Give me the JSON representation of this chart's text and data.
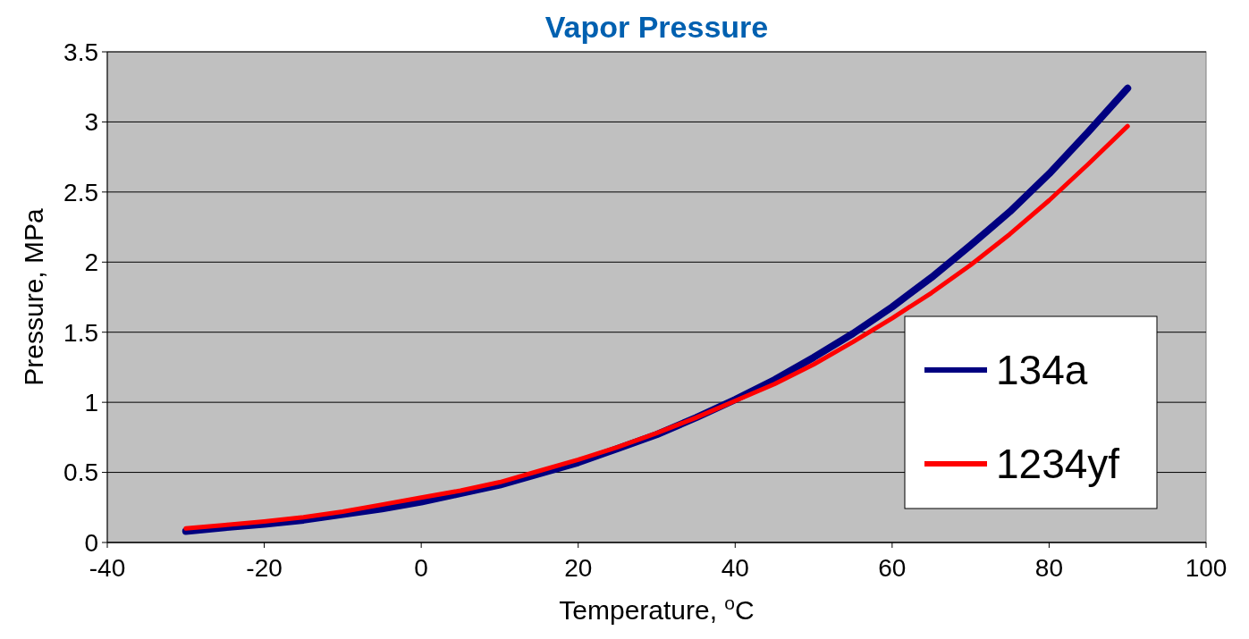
{
  "chart_data": {
    "type": "line",
    "title": "Vapor Pressure",
    "xlabel": "Temperature, $^{o}$C",
    "ylabel": "Pressure, MPa",
    "x": [
      -30,
      -25,
      -20,
      -15,
      -10,
      -5,
      0,
      5,
      10,
      15,
      20,
      25,
      30,
      35,
      40,
      45,
      50,
      55,
      60,
      65,
      70,
      75,
      80,
      85,
      90
    ],
    "series": [
      {
        "name": "134a",
        "color": "#000080",
        "values": [
          0.08,
          0.107,
          0.13,
          0.16,
          0.2,
          0.24,
          0.29,
          0.35,
          0.41,
          0.49,
          0.57,
          0.67,
          0.77,
          0.89,
          1.02,
          1.16,
          1.32,
          1.49,
          1.68,
          1.89,
          2.12,
          2.36,
          2.63,
          2.93,
          3.24
        ]
      },
      {
        "name": "1234yf",
        "color": "#ff0000",
        "values": [
          0.1,
          0.125,
          0.15,
          0.18,
          0.22,
          0.27,
          0.32,
          0.37,
          0.43,
          0.51,
          0.59,
          0.68,
          0.78,
          0.89,
          1.01,
          1.13,
          1.27,
          1.43,
          1.6,
          1.78,
          1.98,
          2.2,
          2.44,
          2.7,
          2.97
        ]
      }
    ],
    "xlim": [
      -40,
      100
    ],
    "xticks": [
      -40,
      -20,
      0,
      20,
      40,
      60,
      80,
      100
    ],
    "ylim": [
      0,
      3.5
    ],
    "yticks": [
      0,
      0.5,
      1,
      1.5,
      2,
      2.5,
      3,
      3.5
    ],
    "grid": "y",
    "legend": "right",
    "marker": "none",
    "line_style": "solid"
  }
}
